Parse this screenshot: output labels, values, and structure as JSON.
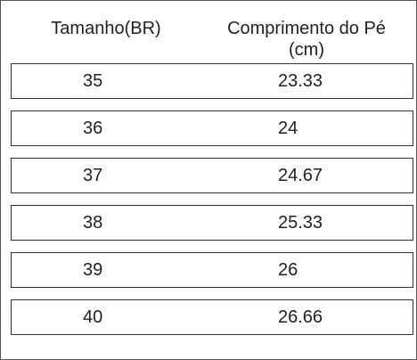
{
  "table": {
    "header": [
      "Tamanho(BR)",
      "Comprimento do Pé (cm)"
    ],
    "rows": [
      [
        "35",
        "23.33"
      ],
      [
        "36",
        "24"
      ],
      [
        "37",
        "24.67"
      ],
      [
        "38",
        "25.33"
      ],
      [
        "39",
        "26"
      ],
      [
        "40",
        "26.66"
      ]
    ]
  }
}
